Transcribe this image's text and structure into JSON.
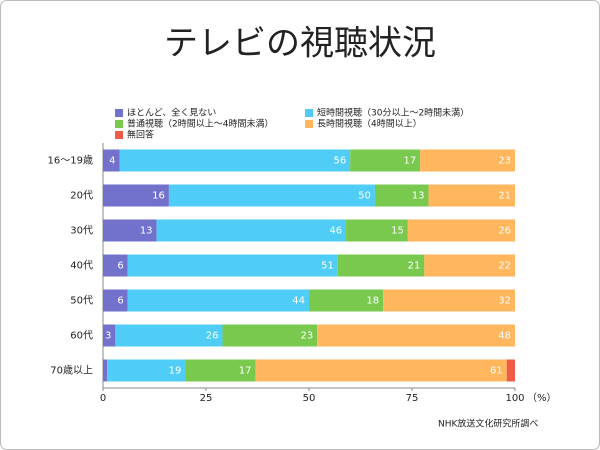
{
  "chart_data": {
    "type": "stacked_bar_horizontal",
    "title": "テレビの視聴状況",
    "categories": [
      "16～19歳",
      "20代",
      "30代",
      "40代",
      "50代",
      "60代",
      "70歳以上"
    ],
    "series": [
      {
        "name": "ほとんど、全く見ない",
        "color": "#7272cc",
        "values": [
          4,
          16,
          13,
          6,
          6,
          3,
          1
        ]
      },
      {
        "name": "短時間視聴（30分以上～2時間未満）",
        "color": "#4fcdf7",
        "values": [
          56,
          50,
          46,
          51,
          44,
          26,
          19
        ]
      },
      {
        "name": "普通視聴（2時間以上～4時間未満）",
        "color": "#7ac94f",
        "values": [
          17,
          13,
          15,
          21,
          18,
          23,
          17
        ]
      },
      {
        "name": "長時間視聴（4時間以上）",
        "color": "#ffb65c",
        "values": [
          23,
          21,
          26,
          22,
          32,
          48,
          61
        ]
      },
      {
        "name": "無回答",
        "color": "#f25a48",
        "values": [
          null,
          null,
          null,
          null,
          null,
          null,
          2
        ]
      }
    ],
    "xlim": [
      0,
      100
    ],
    "xticks": [
      0,
      25,
      50,
      75,
      100
    ],
    "x_unit": "（%）",
    "source": "NHK放送文化研究所調べ"
  }
}
